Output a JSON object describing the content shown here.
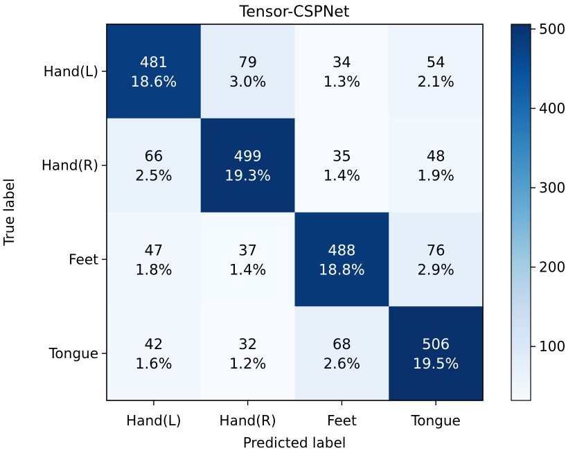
{
  "chart_data": {
    "type": "heatmap",
    "title": "Tensor-CSPNet",
    "xlabel": "Predicted label",
    "ylabel": "True label",
    "x_categories": [
      "Hand(L)",
      "Hand(R)",
      "Feet",
      "Tongue"
    ],
    "y_categories": [
      "Hand(L)",
      "Hand(R)",
      "Feet",
      "Tongue"
    ],
    "values": [
      [
        481,
        79,
        34,
        54
      ],
      [
        66,
        499,
        35,
        48
      ],
      [
        47,
        37,
        488,
        76
      ],
      [
        42,
        32,
        68,
        506
      ]
    ],
    "percent_labels": [
      [
        "18.6%",
        "3.0%",
        "1.3%",
        "2.1%"
      ],
      [
        "2.5%",
        "19.3%",
        "1.4%",
        "1.9%"
      ],
      [
        "1.8%",
        "1.4%",
        "18.8%",
        "2.9%"
      ],
      [
        "1.6%",
        "1.2%",
        "2.6%",
        "19.5%"
      ]
    ],
    "colorbar": {
      "colormap": "Blues",
      "vmin": 32,
      "vmax": 506,
      "ticks": [
        100,
        200,
        300,
        400,
        500
      ],
      "tick_labels": [
        "100",
        "200",
        "300",
        "400",
        "500"
      ]
    }
  }
}
